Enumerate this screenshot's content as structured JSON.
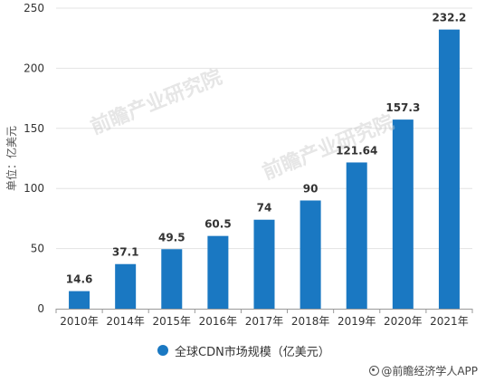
{
  "chart_data": {
    "type": "bar",
    "categories": [
      "2010年",
      "2014年",
      "2015年",
      "2016年",
      "2017年",
      "2018年",
      "2019年",
      "2020年",
      "2021年"
    ],
    "series": [
      {
        "name": "全球CDN市场规模（亿美元）",
        "values": [
          14.6,
          37.1,
          49.5,
          60.5,
          74,
          90,
          121.64,
          157.3,
          232.2
        ],
        "color": "#1a78c2"
      }
    ],
    "value_labels": [
      "14.6",
      "37.1",
      "49.5",
      "60.5",
      "74",
      "90",
      "121.64",
      "157.3",
      "232.2"
    ],
    "title": "",
    "xlabel": "",
    "ylabel": "单位：亿美元",
    "ylim": [
      0,
      250
    ],
    "yticks": [
      0,
      50,
      100,
      150,
      200,
      250
    ],
    "grid": true,
    "legend_position": "bottom"
  },
  "legend": {
    "label": "全球CDN市场规模（亿美元）",
    "color": "#1a78c2"
  },
  "source": {
    "text": "@前瞻经济学人APP",
    "icon": "weibo-icon"
  },
  "watermark": {
    "text": "前瞻产业研究院"
  }
}
